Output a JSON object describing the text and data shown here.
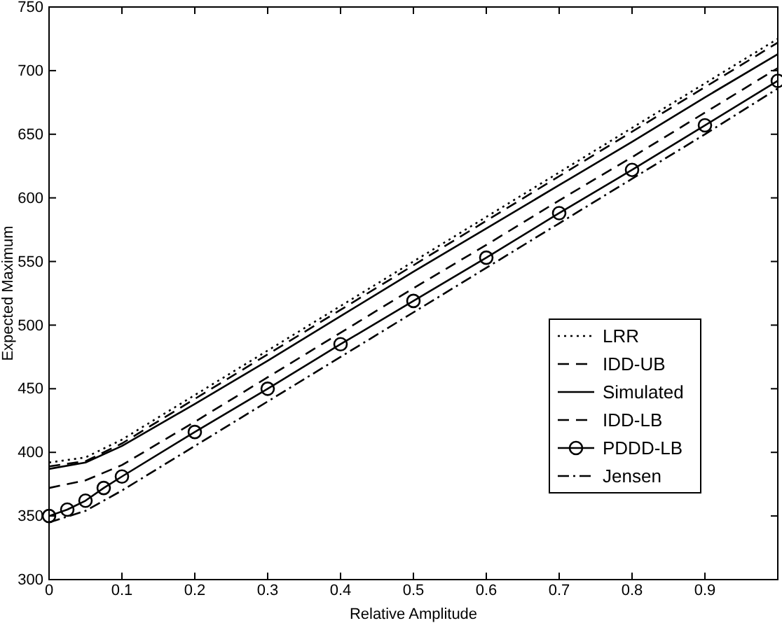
{
  "chart_data": {
    "type": "line",
    "xlabel": "Relative Amplitude",
    "ylabel": "Expected Maximum",
    "xlim": [
      0,
      1
    ],
    "ylim": [
      300,
      750
    ],
    "xticks": [
      0,
      0.1,
      0.2,
      0.3,
      0.4,
      0.5,
      0.6,
      0.7,
      0.8,
      0.9
    ],
    "yticks": [
      300,
      350,
      400,
      450,
      500,
      550,
      600,
      650,
      700,
      750
    ],
    "legend": "bottom right",
    "grid": false,
    "series": [
      {
        "name": "LRR",
        "color": "#000000",
        "line_style": "dotted",
        "marker": "none",
        "x": [
          0,
          0.05,
          0.1,
          0.2,
          0.3,
          0.4,
          0.5,
          0.6,
          0.7,
          0.8,
          0.9,
          1
        ],
        "values": [
          392,
          396,
          410,
          445,
          480,
          515,
          550,
          585,
          620,
          655,
          690,
          725
        ]
      },
      {
        "name": "IDD-UB",
        "color": "#000000",
        "line_style": "dashed",
        "marker": "none",
        "x": [
          0,
          0.05,
          0.1,
          0.2,
          0.3,
          0.4,
          0.5,
          0.6,
          0.7,
          0.8,
          0.9,
          1
        ],
        "values": [
          389,
          393,
          407,
          442,
          477,
          512,
          547,
          582,
          617,
          652,
          687,
          722
        ]
      },
      {
        "name": "Simulated",
        "color": "#000000",
        "line_style": "solid",
        "marker": "none",
        "x": [
          0,
          0.05,
          0.1,
          0.2,
          0.3,
          0.4,
          0.5,
          0.6,
          0.7,
          0.8,
          0.9,
          1
        ],
        "values": [
          387,
          392,
          405,
          438,
          472,
          507,
          542,
          576,
          610,
          644,
          679,
          713
        ]
      },
      {
        "name": "IDD-LB",
        "color": "#000000",
        "line_style": "dashed",
        "marker": "none",
        "x": [
          0,
          0.05,
          0.1,
          0.2,
          0.3,
          0.4,
          0.5,
          0.6,
          0.7,
          0.8,
          0.9,
          1
        ],
        "values": [
          372,
          378,
          390,
          424,
          459,
          494,
          529,
          563,
          598,
          632,
          667,
          702
        ]
      },
      {
        "name": "PDDD-LB",
        "color": "#000000",
        "line_style": "solid",
        "marker": "circle",
        "x": [
          0,
          0.025,
          0.05,
          0.075,
          0.1,
          0.2,
          0.3,
          0.4,
          0.5,
          0.6,
          0.7,
          0.8,
          0.9,
          1
        ],
        "values": [
          350,
          355,
          362,
          372,
          381,
          416,
          450,
          485,
          519,
          553,
          588,
          622,
          657,
          692
        ]
      },
      {
        "name": "Jensen",
        "color": "#000000",
        "line_style": "dashdot",
        "marker": "none",
        "x": [
          0,
          0.05,
          0.1,
          0.2,
          0.3,
          0.4,
          0.5,
          0.6,
          0.7,
          0.8,
          0.9,
          1
        ],
        "values": [
          345,
          354,
          370,
          405,
          440,
          475,
          510,
          545,
          580,
          615,
          650,
          686
        ]
      }
    ]
  }
}
